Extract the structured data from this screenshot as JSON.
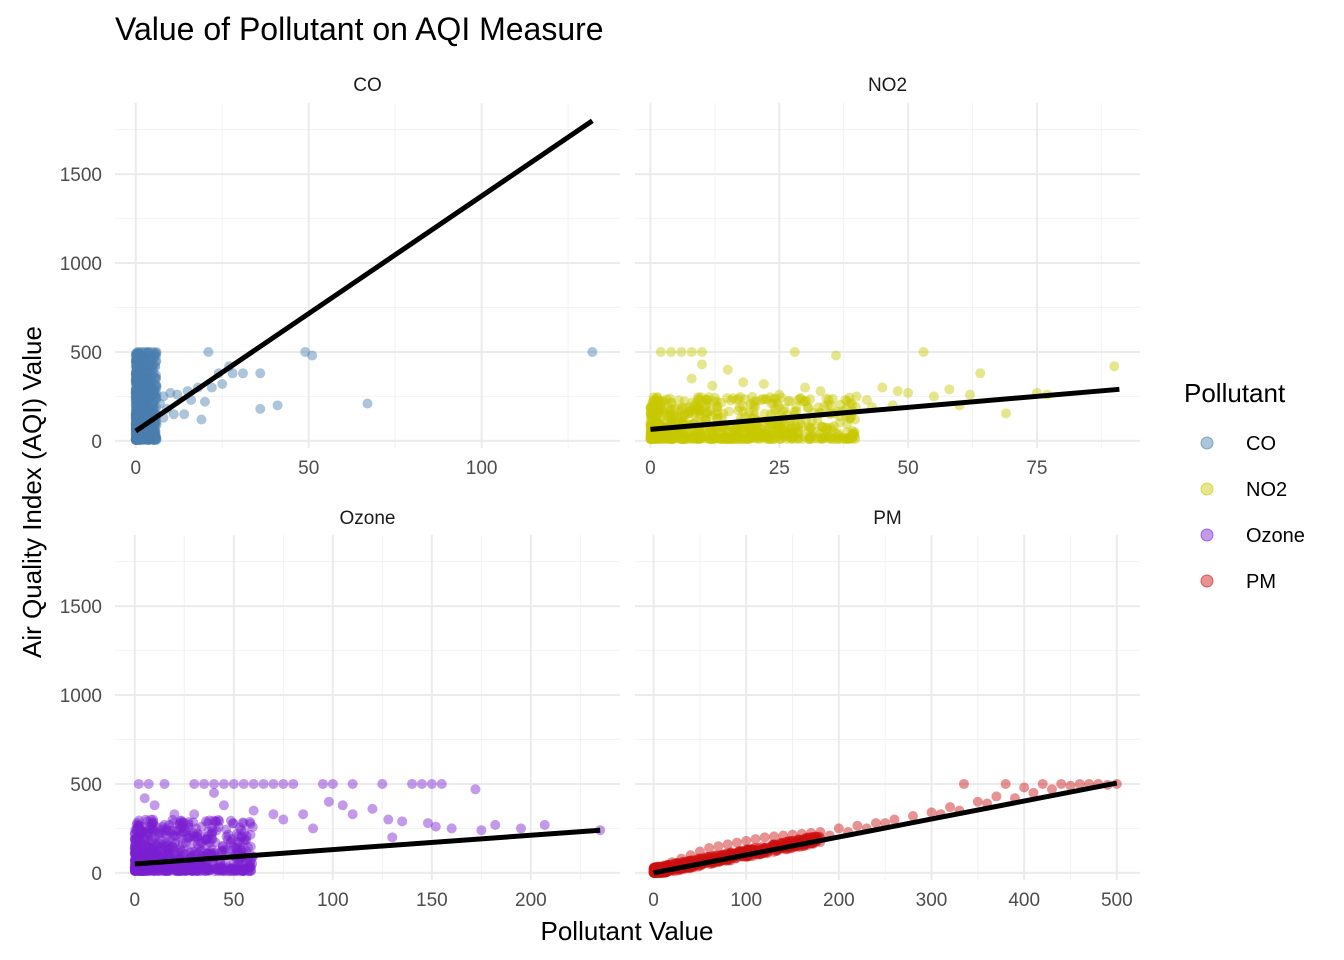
{
  "chart_data": {
    "type": "scatter",
    "title": "Value of Pollutant on AQI Measure",
    "xlabel": "Pollutant Value",
    "ylabel": "Air Quality Index (AQI) Value",
    "ylim": [
      -40,
      1900
    ],
    "y_ticks": [
      0,
      500,
      1000,
      1500
    ],
    "y_tick_labels": [
      "0",
      "500",
      "1000",
      "1500"
    ],
    "legend": {
      "title": "Pollutant",
      "position": "right",
      "entries": [
        {
          "label": "CO",
          "color": "#4a7fb0"
        },
        {
          "label": "NO2",
          "color": "#c8c800"
        },
        {
          "label": "Ozone",
          "color": "#7a1fd1"
        },
        {
          "label": "PM",
          "color": "#cc1010"
        }
      ]
    },
    "panels": [
      {
        "name": "CO",
        "color": "#4a7fb0",
        "xlim": [
          -6,
          140
        ],
        "x_ticks": [
          0,
          50,
          100
        ],
        "x_tick_labels": [
          "0",
          "50",
          "100"
        ],
        "fit": {
          "x": [
            0,
            132
          ],
          "y": [
            55,
            1800
          ]
        },
        "points": [
          [
            0.5,
            500
          ],
          [
            1,
            500
          ],
          [
            2,
            500
          ],
          [
            3,
            500
          ],
          [
            4,
            500
          ],
          [
            5,
            500
          ],
          [
            1.5,
            480
          ],
          [
            2.5,
            450
          ],
          [
            3,
            420
          ],
          [
            4,
            400
          ],
          [
            2,
            380
          ],
          [
            3.5,
            350
          ],
          [
            1,
            320
          ],
          [
            4.5,
            300
          ],
          [
            2,
            280
          ],
          [
            5,
            260
          ],
          [
            6,
            240
          ],
          [
            8,
            250
          ],
          [
            10,
            270
          ],
          [
            12,
            260
          ],
          [
            15,
            280
          ],
          [
            18,
            300
          ],
          [
            21,
            500
          ],
          [
            22,
            300
          ],
          [
            20,
            220
          ],
          [
            25,
            320
          ],
          [
            27,
            420
          ],
          [
            28,
            380
          ],
          [
            31,
            380
          ],
          [
            36,
            380
          ],
          [
            36,
            180
          ],
          [
            41,
            200
          ],
          [
            49,
            500
          ],
          [
            51,
            480
          ],
          [
            67,
            210
          ],
          [
            132,
            500
          ],
          [
            19,
            120
          ],
          [
            14,
            150
          ],
          [
            9,
            180
          ],
          [
            7,
            210
          ],
          [
            11,
            150
          ],
          [
            16,
            230
          ],
          [
            24,
            380
          ],
          [
            5,
            150
          ],
          [
            3,
            100
          ],
          [
            1,
            60
          ],
          [
            2,
            40
          ],
          [
            0.5,
            20
          ],
          [
            6,
            90
          ],
          [
            8,
            130
          ]
        ],
        "cloud": {
          "x": [
            0,
            6
          ],
          "y": [
            5,
            500
          ]
        }
      },
      {
        "name": "NO2",
        "color": "#c8c800",
        "xlim": [
          -3,
          95
        ],
        "x_ticks": [
          0,
          25,
          50,
          75
        ],
        "x_tick_labels": [
          "0",
          "25",
          "50",
          "75"
        ],
        "fit": {
          "x": [
            0,
            91
          ],
          "y": [
            65,
            290
          ]
        },
        "points": [
          [
            2,
            500
          ],
          [
            4,
            500
          ],
          [
            6,
            500
          ],
          [
            8,
            500
          ],
          [
            10,
            500
          ],
          [
            10,
            430
          ],
          [
            15,
            400
          ],
          [
            28,
            500
          ],
          [
            36,
            480
          ],
          [
            53,
            500
          ],
          [
            58,
            290
          ],
          [
            62,
            260
          ],
          [
            64,
            380
          ],
          [
            69,
            155
          ],
          [
            75,
            270
          ],
          [
            77,
            260
          ],
          [
            90,
            420
          ],
          [
            45,
            300
          ],
          [
            48,
            280
          ],
          [
            50,
            270
          ],
          [
            40,
            250
          ],
          [
            42,
            230
          ],
          [
            30,
            300
          ],
          [
            33,
            280
          ],
          [
            25,
            260
          ],
          [
            22,
            320
          ],
          [
            18,
            330
          ],
          [
            12,
            310
          ],
          [
            20,
            200
          ],
          [
            35,
            200
          ],
          [
            38,
            180
          ],
          [
            43,
            190
          ],
          [
            47,
            200
          ],
          [
            55,
            250
          ],
          [
            60,
            200
          ],
          [
            26,
            180
          ],
          [
            16,
            240
          ],
          [
            8,
            350
          ]
        ],
        "cloud": {
          "x": [
            0,
            40
          ],
          "y": [
            10,
            250
          ]
        }
      },
      {
        "name": "Ozone",
        "color": "#7a1fd1",
        "xlim": [
          -10,
          245
        ],
        "x_ticks": [
          0,
          50,
          100,
          150,
          200
        ],
        "x_tick_labels": [
          "0",
          "50",
          "100",
          "150",
          "200"
        ],
        "fit": {
          "x": [
            0,
            235
          ],
          "y": [
            50,
            240
          ]
        },
        "points": [
          [
            2,
            500
          ],
          [
            7,
            500
          ],
          [
            15,
            500
          ],
          [
            30,
            500
          ],
          [
            35,
            500
          ],
          [
            40,
            500
          ],
          [
            45,
            500
          ],
          [
            50,
            500
          ],
          [
            55,
            500
          ],
          [
            60,
            500
          ],
          [
            65,
            500
          ],
          [
            70,
            500
          ],
          [
            75,
            500
          ],
          [
            80,
            500
          ],
          [
            95,
            500
          ],
          [
            100,
            500
          ],
          [
            110,
            500
          ],
          [
            125,
            500
          ],
          [
            140,
            500
          ],
          [
            145,
            500
          ],
          [
            150,
            500
          ],
          [
            155,
            500
          ],
          [
            172,
            470
          ],
          [
            98,
            400
          ],
          [
            105,
            380
          ],
          [
            120,
            360
          ],
          [
            128,
            300
          ],
          [
            135,
            290
          ],
          [
            148,
            280
          ],
          [
            152,
            260
          ],
          [
            160,
            250
          ],
          [
            175,
            240
          ],
          [
            182,
            270
          ],
          [
            195,
            250
          ],
          [
            207,
            270
          ],
          [
            235,
            240
          ],
          [
            40,
            450
          ],
          [
            45,
            380
          ],
          [
            60,
            350
          ],
          [
            70,
            330
          ],
          [
            85,
            330
          ],
          [
            110,
            330
          ],
          [
            30,
            330
          ],
          [
            20,
            330
          ],
          [
            5,
            420
          ],
          [
            10,
            380
          ],
          [
            130,
            200
          ],
          [
            90,
            250
          ],
          [
            75,
            300
          ],
          [
            55,
            280
          ]
        ],
        "cloud": {
          "x": [
            0,
            60
          ],
          "y": [
            10,
            300
          ]
        }
      },
      {
        "name": "PM",
        "color": "#cc1010",
        "xlim": [
          -20,
          525
        ],
        "x_ticks": [
          0,
          100,
          200,
          300,
          400,
          500
        ],
        "x_tick_labels": [
          "0",
          "100",
          "200",
          "300",
          "400",
          "500"
        ],
        "fit": {
          "x": [
            0,
            500
          ],
          "y": [
            0,
            505
          ]
        },
        "points": [
          [
            10,
            30
          ],
          [
            20,
            60
          ],
          [
            30,
            80
          ],
          [
            40,
            100
          ],
          [
            50,
            120
          ],
          [
            60,
            140
          ],
          [
            70,
            150
          ],
          [
            80,
            160
          ],
          [
            90,
            170
          ],
          [
            100,
            180
          ],
          [
            110,
            190
          ],
          [
            120,
            200
          ],
          [
            130,
            205
          ],
          [
            140,
            210
          ],
          [
            150,
            215
          ],
          [
            160,
            220
          ],
          [
            170,
            225
          ],
          [
            180,
            230
          ],
          [
            200,
            250
          ],
          [
            220,
            265
          ],
          [
            240,
            280
          ],
          [
            260,
            300
          ],
          [
            280,
            320
          ],
          [
            300,
            340
          ],
          [
            320,
            370
          ],
          [
            335,
            500
          ],
          [
            350,
            400
          ],
          [
            370,
            430
          ],
          [
            380,
            500
          ],
          [
            400,
            480
          ],
          [
            420,
            500
          ],
          [
            440,
            500
          ],
          [
            460,
            500
          ],
          [
            480,
            500
          ],
          [
            500,
            500
          ],
          [
            490,
            495
          ],
          [
            250,
            280
          ],
          [
            230,
            250
          ],
          [
            210,
            230
          ],
          [
            190,
            210
          ],
          [
            310,
            330
          ],
          [
            330,
            350
          ],
          [
            360,
            390
          ],
          [
            390,
            420
          ],
          [
            410,
            450
          ],
          [
            430,
            470
          ],
          [
            450,
            490
          ],
          [
            470,
            500
          ],
          [
            120,
            140
          ],
          [
            150,
            180
          ],
          [
            80,
            110
          ],
          [
            40,
            70
          ],
          [
            5,
            10
          ],
          [
            15,
            20
          ],
          [
            25,
            40
          ],
          [
            35,
            60
          ]
        ],
        "cloud": {
          "x": [
            0,
            180
          ],
          "y": [
            0,
            230
          ]
        }
      }
    ]
  }
}
